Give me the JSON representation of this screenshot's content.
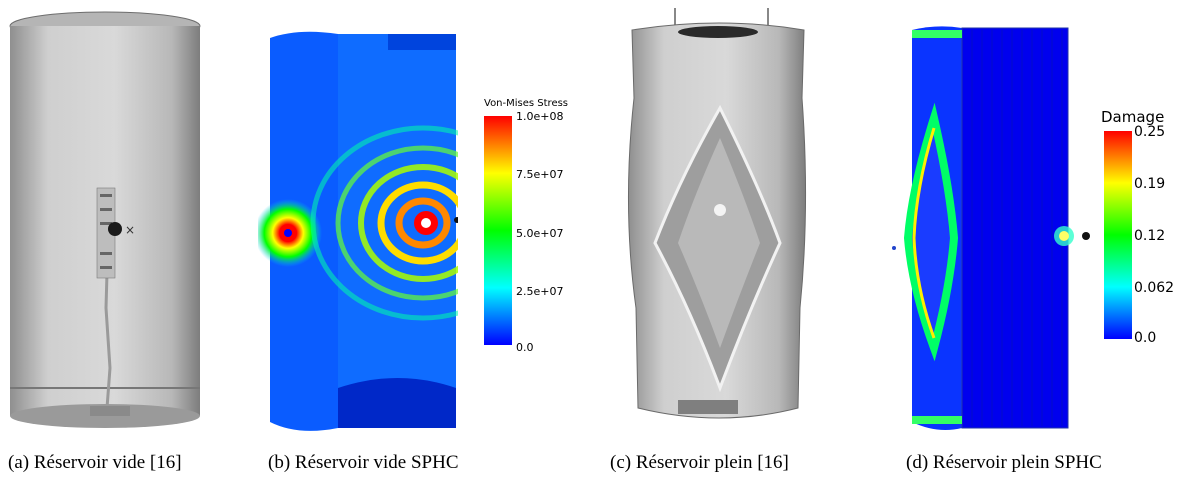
{
  "figure": {
    "captions": [
      "(a)  Réservoir vide [16]",
      "(b)  Réservoir vide SPHC",
      "(c)  Réservoir plein [16]",
      "(d)  Réservoir plein SPHC"
    ]
  },
  "legend_b": {
    "title": "Von-Mises Stress",
    "ticks": [
      "1.0e+08",
      "7.5e+07",
      "5.0e+07",
      "2.5e+07",
      "0.0"
    ]
  },
  "legend_d": {
    "title": "Damage",
    "ticks": [
      "0.25",
      "0.19",
      "0.12",
      "0.062",
      "0.0"
    ]
  },
  "colors": {
    "rainbow_low": "#0000ff",
    "rainbow_high": "#ff0000",
    "tank_grey": "#c8c8c8"
  }
}
